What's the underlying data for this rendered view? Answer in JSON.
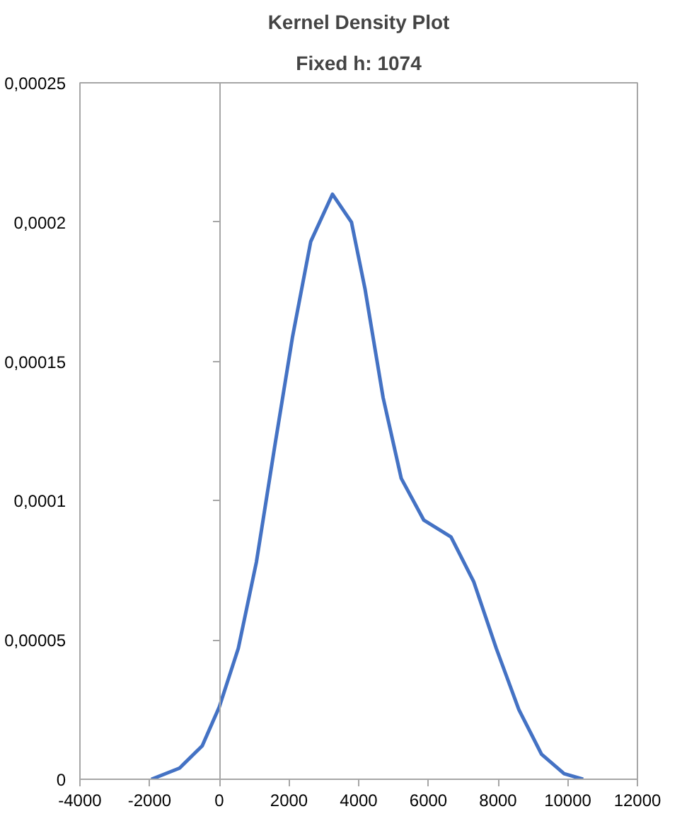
{
  "chart_data": {
    "type": "line",
    "title": "Kernel Density Plot",
    "subtitle": "Fixed h: 1074",
    "x": [
      -1950,
      -1140,
      -490,
      0,
      545,
      1065,
      1584,
      2104,
      2623,
      3247,
      3792,
      4182,
      4701,
      5221,
      5870,
      6649,
      7299,
      7948,
      8597,
      9247,
      9896,
      10442
    ],
    "series": [
      {
        "color": "#4472c4",
        "values": [
          0,
          4e-06,
          1.2e-05,
          2.6e-05,
          4.7e-05,
          7.8e-05,
          0.000119,
          0.000159,
          0.000193,
          0.00021,
          0.0002,
          0.000176,
          0.000137,
          0.000108,
          9.3e-05,
          8.7e-05,
          7.1e-05,
          4.7e-05,
          2.5e-05,
          9e-06,
          2e-06,
          0
        ]
      }
    ],
    "xlim": [
      -4000,
      12000
    ],
    "xticks": [
      -4000,
      -2000,
      0,
      2000,
      4000,
      6000,
      8000,
      10000,
      12000
    ],
    "ylim": [
      0,
      0.00025
    ],
    "yticks": [
      0,
      {
        "value": 5e-05,
        "label": "0,00005"
      },
      {
        "value": 0.0001,
        "label": "0,0001"
      },
      {
        "value": 0.00015,
        "label": "0,00015"
      },
      {
        "value": 0.0002,
        "label": "0,0002"
      },
      {
        "value": 0.00025,
        "label": "0,00025"
      }
    ],
    "marker": "none",
    "line_style": "solid"
  }
}
